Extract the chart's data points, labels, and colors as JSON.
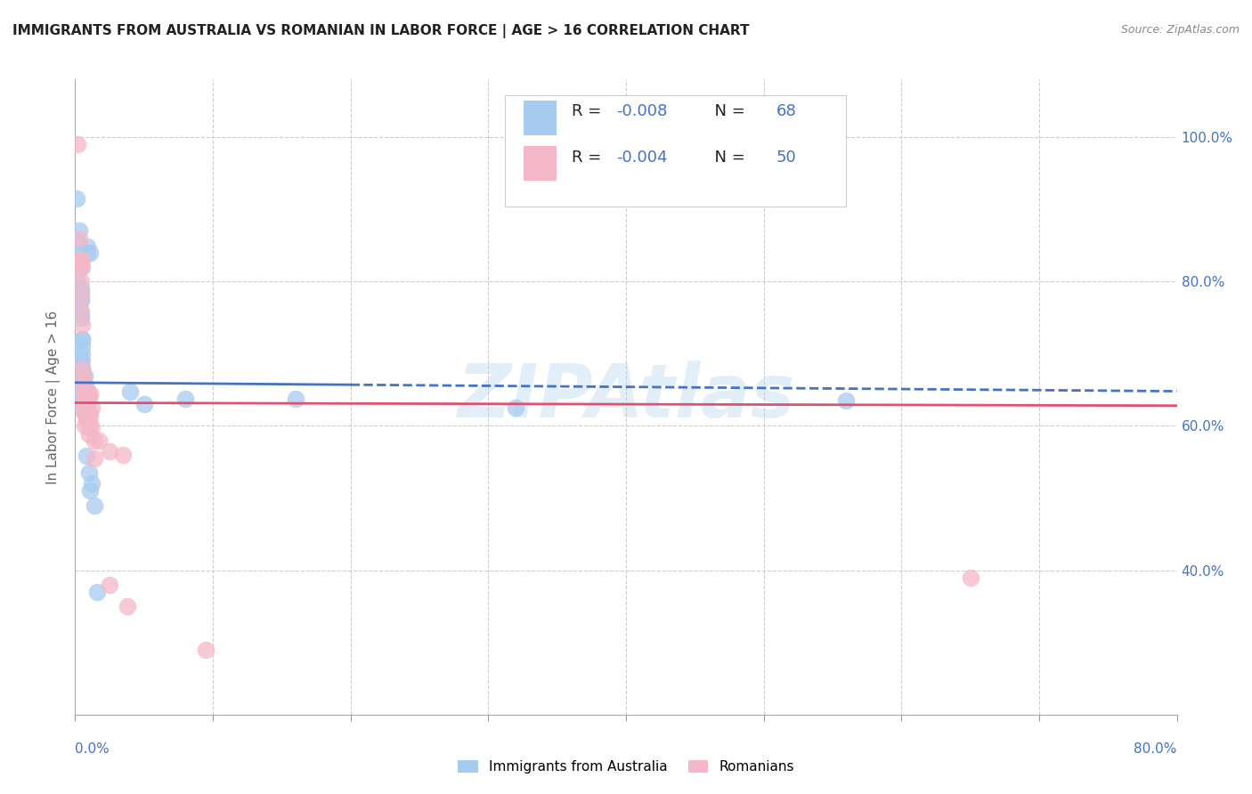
{
  "title": "IMMIGRANTS FROM AUSTRALIA VS ROMANIAN IN LABOR FORCE | AGE > 16 CORRELATION CHART",
  "source": "Source: ZipAtlas.com",
  "ylabel": "In Labor Force | Age > 16",
  "xmin": 0.0,
  "xmax": 0.8,
  "ymin": 0.2,
  "ymax": 1.08,
  "legend_r_blue": "-0.008",
  "legend_n_blue": "68",
  "legend_r_pink": "-0.004",
  "legend_n_pink": "50",
  "watermark": "ZIPAtlas",
  "blue_color": "#A8CCF0",
  "pink_color": "#F4B8C8",
  "blue_line_color": "#4472C4",
  "pink_line_color": "#E05070",
  "text_color": "#333333",
  "blue_accent": "#4472C4",
  "grid_color": "#CCCCCC",
  "blue_scatter": [
    [
      0.001,
      0.915
    ],
    [
      0.002,
      0.78
    ],
    [
      0.002,
      0.855
    ],
    [
      0.002,
      0.8
    ],
    [
      0.003,
      0.87
    ],
    [
      0.003,
      0.84
    ],
    [
      0.003,
      0.82
    ],
    [
      0.003,
      0.76
    ],
    [
      0.004,
      0.79
    ],
    [
      0.004,
      0.775
    ],
    [
      0.004,
      0.755
    ],
    [
      0.004,
      0.775
    ],
    [
      0.004,
      0.785
    ],
    [
      0.004,
      0.69
    ],
    [
      0.004,
      0.75
    ],
    [
      0.005,
      0.72
    ],
    [
      0.005,
      0.72
    ],
    [
      0.005,
      0.7
    ],
    [
      0.005,
      0.71
    ],
    [
      0.005,
      0.69
    ],
    [
      0.005,
      0.68
    ],
    [
      0.005,
      0.68
    ],
    [
      0.005,
      0.67
    ],
    [
      0.005,
      0.65
    ],
    [
      0.005,
      0.64
    ],
    [
      0.005,
      0.635
    ],
    [
      0.005,
      0.64
    ],
    [
      0.005,
      0.625
    ],
    [
      0.006,
      0.66
    ],
    [
      0.006,
      0.65
    ],
    [
      0.006,
      0.64
    ],
    [
      0.006,
      0.63
    ],
    [
      0.006,
      0.64
    ],
    [
      0.006,
      0.625
    ],
    [
      0.006,
      0.65
    ],
    [
      0.006,
      0.638
    ],
    [
      0.006,
      0.632
    ],
    [
      0.006,
      0.628
    ],
    [
      0.007,
      0.64
    ],
    [
      0.007,
      0.635
    ],
    [
      0.007,
      0.628
    ],
    [
      0.007,
      0.64
    ],
    [
      0.007,
      0.625
    ],
    [
      0.007,
      0.618
    ],
    [
      0.007,
      0.67
    ],
    [
      0.007,
      0.658
    ],
    [
      0.007,
      0.648
    ],
    [
      0.007,
      0.638
    ],
    [
      0.008,
      0.65
    ],
    [
      0.008,
      0.638
    ],
    [
      0.008,
      0.645
    ],
    [
      0.008,
      0.63
    ],
    [
      0.008,
      0.622
    ],
    [
      0.008,
      0.558
    ],
    [
      0.009,
      0.848
    ],
    [
      0.009,
      0.84
    ],
    [
      0.01,
      0.535
    ],
    [
      0.011,
      0.84
    ],
    [
      0.011,
      0.51
    ],
    [
      0.012,
      0.52
    ],
    [
      0.014,
      0.49
    ],
    [
      0.016,
      0.37
    ],
    [
      0.04,
      0.648
    ],
    [
      0.05,
      0.63
    ],
    [
      0.08,
      0.638
    ],
    [
      0.16,
      0.638
    ],
    [
      0.32,
      0.625
    ],
    [
      0.56,
      0.635
    ]
  ],
  "pink_scatter": [
    [
      0.002,
      0.99
    ],
    [
      0.003,
      0.86
    ],
    [
      0.003,
      0.83
    ],
    [
      0.004,
      0.82
    ],
    [
      0.004,
      0.8
    ],
    [
      0.004,
      0.78
    ],
    [
      0.004,
      0.76
    ],
    [
      0.005,
      0.74
    ],
    [
      0.005,
      0.83
    ],
    [
      0.005,
      0.82
    ],
    [
      0.005,
      0.68
    ],
    [
      0.005,
      0.66
    ],
    [
      0.006,
      0.668
    ],
    [
      0.006,
      0.65
    ],
    [
      0.006,
      0.635
    ],
    [
      0.006,
      0.62
    ],
    [
      0.006,
      0.645
    ],
    [
      0.006,
      0.628
    ],
    [
      0.007,
      0.628
    ],
    [
      0.007,
      0.618
    ],
    [
      0.007,
      0.6
    ],
    [
      0.007,
      0.635
    ],
    [
      0.008,
      0.64
    ],
    [
      0.008,
      0.622
    ],
    [
      0.008,
      0.608
    ],
    [
      0.008,
      0.638
    ],
    [
      0.008,
      0.618
    ],
    [
      0.009,
      0.65
    ],
    [
      0.009,
      0.632
    ],
    [
      0.009,
      0.62
    ],
    [
      0.01,
      0.64
    ],
    [
      0.01,
      0.62
    ],
    [
      0.01,
      0.598
    ],
    [
      0.01,
      0.64
    ],
    [
      0.01,
      0.618
    ],
    [
      0.01,
      0.608
    ],
    [
      0.01,
      0.588
    ],
    [
      0.011,
      0.645
    ],
    [
      0.011,
      0.615
    ],
    [
      0.012,
      0.598
    ],
    [
      0.012,
      0.625
    ],
    [
      0.014,
      0.58
    ],
    [
      0.014,
      0.555
    ],
    [
      0.017,
      0.58
    ],
    [
      0.025,
      0.565
    ],
    [
      0.035,
      0.56
    ],
    [
      0.025,
      0.38
    ],
    [
      0.038,
      0.35
    ],
    [
      0.095,
      0.29
    ],
    [
      0.65,
      0.39
    ]
  ],
  "blue_line_x": [
    0.0,
    0.8
  ],
  "blue_line_y": [
    0.66,
    0.648
  ],
  "pink_line_x": [
    0.0,
    0.8
  ],
  "pink_line_y": [
    0.632,
    0.628
  ]
}
